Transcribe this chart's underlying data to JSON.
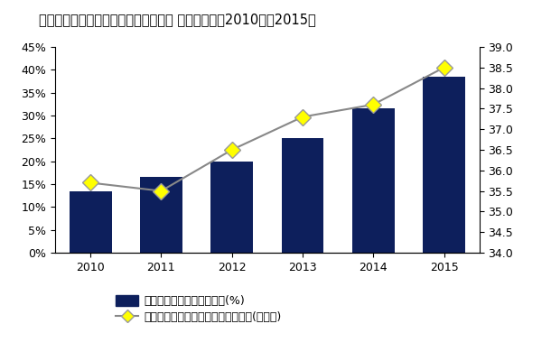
{
  "title": "国内法人向けクライアント仮想化市場 導入率予測、2010年～2015年",
  "years": [
    2010,
    2011,
    2012,
    2013,
    2014,
    2015
  ],
  "bar_values": [
    13.5,
    16.5,
    20.0,
    25.0,
    31.5,
    38.5
  ],
  "line_values": [
    35.7,
    35.5,
    36.5,
    37.3,
    37.6,
    38.5
  ],
  "bar_color": "#0d1f5c",
  "line_color": "#888888",
  "marker_facecolor": "#ffff00",
  "marker_edgecolor": "#999999",
  "left_ylim": [
    0,
    45
  ],
  "left_yticks": [
    0,
    5,
    10,
    15,
    20,
    25,
    30,
    35,
    40,
    45
  ],
  "left_yticklabels": [
    "0%",
    "5%",
    "10%",
    "15%",
    "20%",
    "25%",
    "30%",
    "35%",
    "40%",
    "45%"
  ],
  "right_ylim": [
    34.0,
    39.0
  ],
  "right_yticks": [
    34.0,
    34.5,
    35.0,
    35.5,
    36.0,
    36.5,
    37.0,
    37.5,
    38.0,
    38.5,
    39.0
  ],
  "legend_bar_label": "クライアント仮想化導入率(%)",
  "legend_line_label": "法人向けクライアント端末累積台数(百万台)",
  "bg_color": "#ffffff",
  "title_fontsize": 10.5,
  "tick_fontsize": 9,
  "legend_fontsize": 9
}
